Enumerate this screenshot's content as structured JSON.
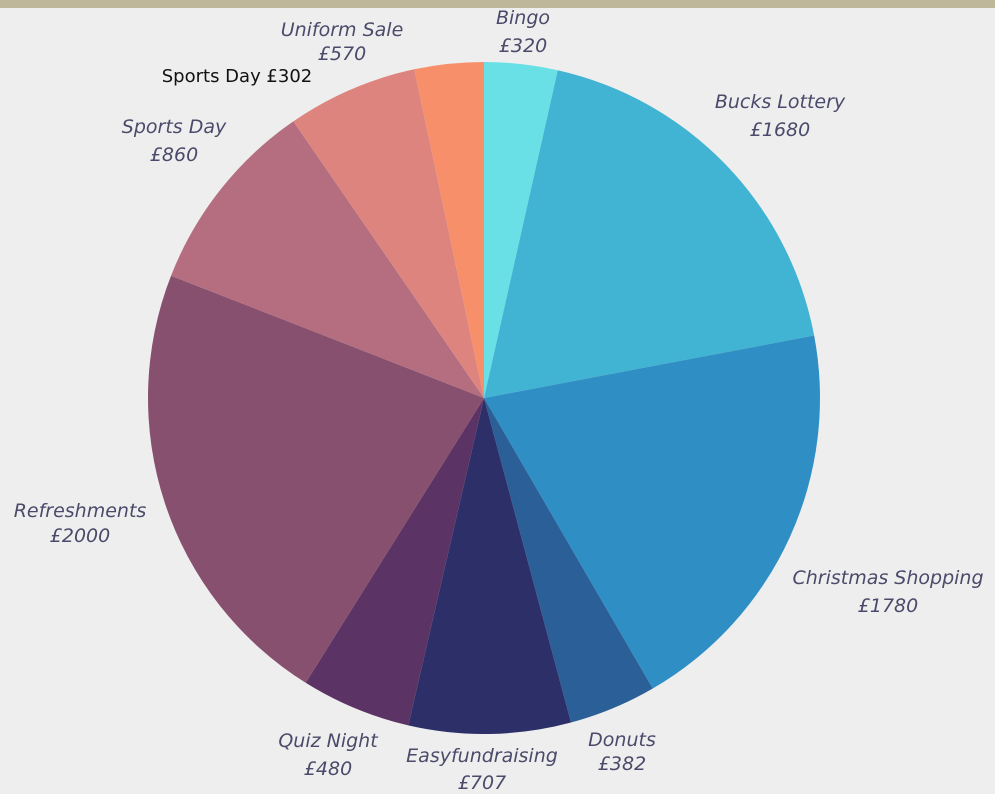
{
  "chart_data": {
    "type": "pie",
    "title": "",
    "slices": [
      {
        "name": "Bingo",
        "value_label": "£320",
        "value": 320,
        "color": "#69e0e6"
      },
      {
        "name": "Bucks Lottery",
        "value_label": "£1680",
        "value": 1680,
        "color": "#42b4d3"
      },
      {
        "name": "Christmas Shopping",
        "value_label": "£1780",
        "value": 1780,
        "color": "#2f8fc4"
      },
      {
        "name": "Donuts",
        "value_label": "£382",
        "value": 382,
        "color": "#2b5f98"
      },
      {
        "name": "Easyfundraising",
        "value_label": "£707",
        "value": 707,
        "color": "#2d2f68"
      },
      {
        "name": "Quiz Night",
        "value_label": "£480",
        "value": 480,
        "color": "#5b3364"
      },
      {
        "name": "Refreshments",
        "value_label": "£2000",
        "value": 2000,
        "color": "#87506e"
      },
      {
        "name": "Sports Day",
        "value_label": "£860",
        "value": 860,
        "color": "#b46e7f"
      },
      {
        "name": "Uniform Sale",
        "value_label": "£570",
        "value": 570,
        "color": "#de847f"
      },
      {
        "name": "Sports Day",
        "value_label": "£302",
        "value": 302,
        "color": "#f78f6b"
      }
    ],
    "annotation": "Sports Day £302"
  },
  "colors": {
    "background": "#efeeee",
    "top_band": "#bfb79a",
    "label_text": "#4a4a6a"
  }
}
